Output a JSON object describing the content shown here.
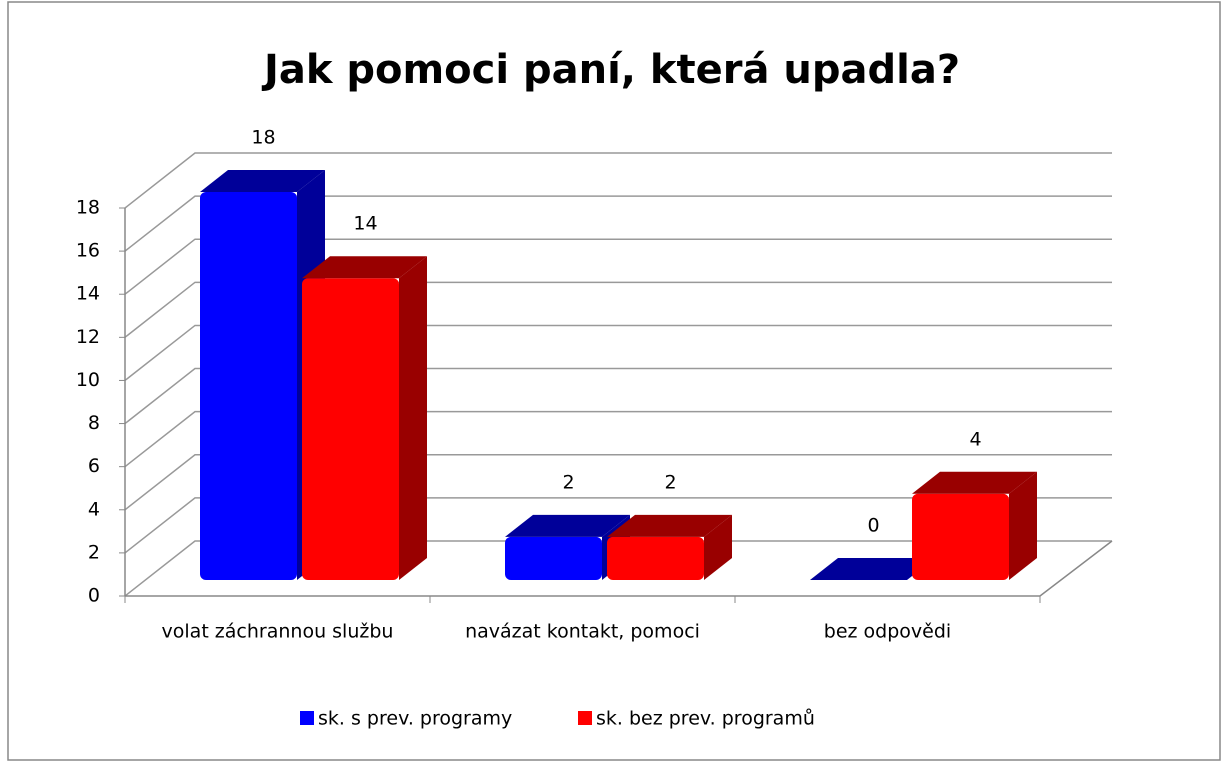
{
  "chart_data": {
    "type": "bar3d",
    "title": "Jak pomoci paní, která upadla?",
    "categories": [
      "volat záchrannou službu",
      "navázat kontakt, pomoci",
      "bez odpovědi"
    ],
    "series": [
      {
        "name": "sk. s prev. programy",
        "color": "#0000ff",
        "values": [
          18,
          2,
          0
        ]
      },
      {
        "name": "sk. bez prev. programů",
        "color": "#ff0000",
        "values": [
          14,
          2,
          4
        ]
      }
    ],
    "ylim": [
      0,
      18
    ],
    "yticks": [
      0,
      2,
      4,
      6,
      8,
      10,
      12,
      14,
      16,
      18
    ],
    "grid": true,
    "legend": "bottom"
  }
}
